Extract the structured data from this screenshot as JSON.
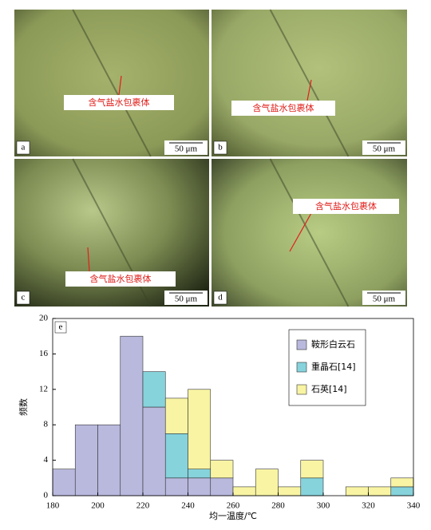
{
  "panels": [
    {
      "label": "a",
      "scale": "50 μm",
      "annotation": "含气盐水包裹体"
    },
    {
      "label": "b",
      "scale": "50 μm",
      "annotation": "含气盐水包裹体"
    },
    {
      "label": "c",
      "scale": "50 μm",
      "annotation": "含气盐水包裹体"
    },
    {
      "label": "d",
      "scale": "50 μm",
      "annotation": "含气盐水包裹体"
    }
  ],
  "chart_data": {
    "type": "histogram",
    "panel_label": "e",
    "x_label": "均一温度/℃",
    "y_label": "频数",
    "bins": [
      180,
      190,
      200,
      210,
      220,
      230,
      240,
      250,
      260,
      270,
      280,
      290,
      300,
      310,
      320,
      330,
      340
    ],
    "series": [
      {
        "name": "鞍形白云石",
        "color": "#b9b9de",
        "values": [
          3,
          8,
          8,
          18,
          10,
          2,
          2,
          2,
          0,
          0,
          0,
          0,
          0,
          0,
          0,
          0
        ]
      },
      {
        "name": "重晶石[14]",
        "color": "#86d3dc",
        "values": [
          0,
          0,
          0,
          0,
          4,
          5,
          1,
          0,
          0,
          0,
          0,
          2,
          0,
          0,
          0,
          1
        ]
      },
      {
        "name": "石英[14]",
        "color": "#f8f4a3",
        "values": [
          0,
          0,
          0,
          0,
          0,
          4,
          9,
          2,
          1,
          3,
          1,
          2,
          0,
          1,
          1,
          1
        ]
      }
    ],
    "xlim": [
      180,
      340
    ],
    "xticks": [
      180,
      200,
      220,
      240,
      260,
      280,
      300,
      320,
      340
    ],
    "ylim": [
      0,
      20
    ],
    "yticks": [
      0,
      4,
      8,
      12,
      16,
      20
    ],
    "stacked": true
  }
}
